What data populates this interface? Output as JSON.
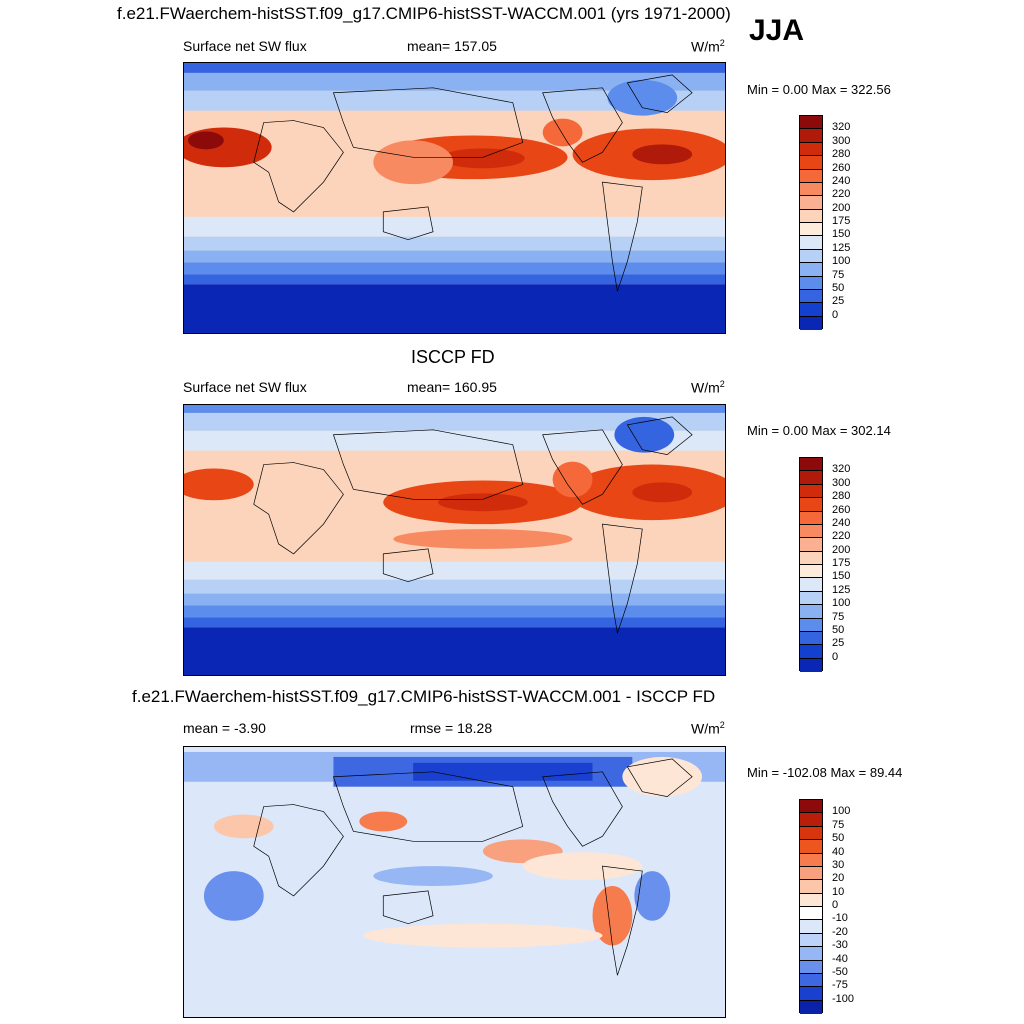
{
  "header": {
    "title": "f.e21.FWaerchem-histSST.f09_g17.CMIP6-histSST-WACCM.001 (yrs 1971-2000)",
    "season": "JJA"
  },
  "panels": [
    {
      "id": "model",
      "heading": "",
      "left": "Surface net SW flux",
      "middle": "mean= 157.05",
      "units": "W/m",
      "units_sup": "2",
      "minmax": "Min =   0.00 Max = 322.56",
      "map_type": "absolute",
      "levels": [
        "320",
        "300",
        "280",
        "260",
        "240",
        "220",
        "200",
        "175",
        "150",
        "125",
        "100",
        "75",
        "50",
        "25",
        "0"
      ]
    },
    {
      "id": "obs",
      "heading": "ISCCP FD",
      "left": "Surface net SW flux",
      "middle": "mean= 160.95",
      "units": "W/m",
      "units_sup": "2",
      "minmax": "Min =   0.00 Max = 302.14",
      "map_type": "absolute",
      "levels": [
        "320",
        "300",
        "280",
        "260",
        "240",
        "220",
        "200",
        "175",
        "150",
        "125",
        "100",
        "75",
        "50",
        "25",
        "0"
      ]
    },
    {
      "id": "diff",
      "heading": "f.e21.FWaerchem-histSST.f09_g17.CMIP6-histSST-WACCM.001 - ISCCP FD",
      "left": "mean =  -3.90",
      "middle": "rmse =  18.28",
      "units": "W/m",
      "units_sup": "2",
      "minmax": "Min = -102.08 Max =  89.44",
      "map_type": "difference",
      "levels": [
        "100",
        "75",
        "50",
        "40",
        "30",
        "20",
        "10",
        "0",
        "-10",
        "-20",
        "-30",
        "-40",
        "-50",
        "-75",
        "-100"
      ]
    }
  ],
  "colors": {
    "absolute": [
      "#8c0a0a",
      "#b01a0a",
      "#d02c0c",
      "#e84614",
      "#f4683a",
      "#f88a62",
      "#fbb092",
      "#fcd4bc",
      "#fdecdc",
      "#dce8f8",
      "#b6d0f6",
      "#8ab2f2",
      "#5c8cec",
      "#3464e0",
      "#1440d0",
      "#0a26b4",
      "#06168a"
    ],
    "difference": [
      "#8c0a0a",
      "#b81e0a",
      "#d8340e",
      "#ee5620",
      "#f67c4e",
      "#f9a07e",
      "#fcc6aa",
      "#fde6d6",
      "#ffffff",
      "#dce8fa",
      "#bcd2f8",
      "#96b6f4",
      "#6a90ee",
      "#3e68e2",
      "#1a40d0",
      "#0a22aa",
      "#040c80"
    ]
  }
}
